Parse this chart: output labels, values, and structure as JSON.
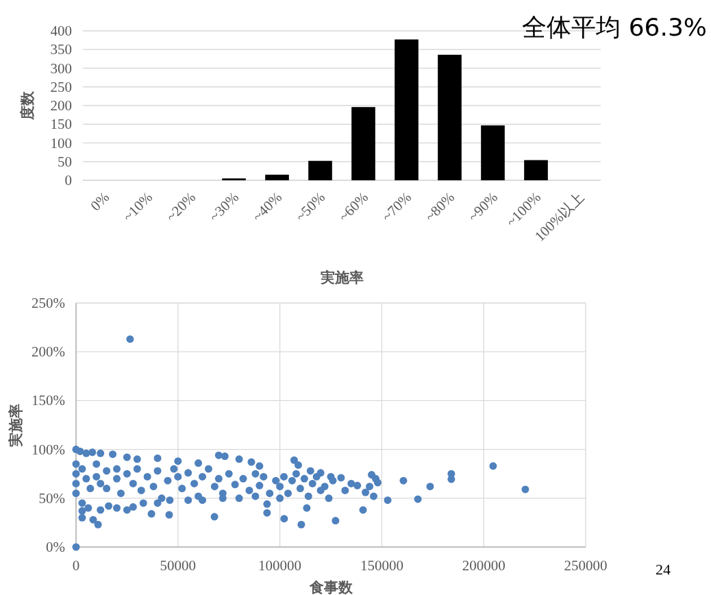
{
  "chart_data": [
    {
      "type": "bar",
      "ylabel": "度数",
      "xlabel": "実施率",
      "annotations": [
        "全体平均 66.3%"
      ],
      "categories": [
        "0%",
        "~10%",
        "~20%",
        "~30%",
        "~40%",
        "~50%",
        "~60%",
        "~70%",
        "~80%",
        "~90%",
        "~100%",
        "100%以上"
      ],
      "values": [
        0,
        0,
        0,
        5,
        15,
        52,
        196,
        377,
        336,
        147,
        54,
        0
      ],
      "color": "#000000",
      "ylim": [
        0,
        400
      ],
      "yticks": [
        0,
        50,
        100,
        150,
        200,
        250,
        300,
        350,
        400
      ],
      "grid": "y"
    },
    {
      "type": "scatter",
      "ylabel": "実施率",
      "xlabel": "食事数",
      "annotations": [
        "24"
      ],
      "color": "#4f81bd",
      "marker": "circle",
      "grid": true,
      "xlim": [
        0,
        250000
      ],
      "xticks": [
        0,
        50000,
        100000,
        150000,
        200000,
        250000
      ],
      "ylim": [
        0,
        250
      ],
      "yticks": [
        {
          "value": 0,
          "label": "0%"
        },
        {
          "value": 50,
          "label": "50%"
        },
        {
          "value": 100,
          "label": "100%"
        },
        {
          "value": 150,
          "label": "150%"
        },
        {
          "value": 200,
          "label": "200%"
        },
        {
          "value": 250,
          "label": "250%"
        }
      ],
      "x": [
        26500,
        0,
        220400,
        204600,
        184100,
        184100,
        173700,
        167700,
        160600,
        152900,
        127300,
        110500,
        102100,
        140800,
        113200,
        93700,
        93700,
        67900,
        45700,
        37000,
        10800,
        8400,
        3000,
        3000,
        0,
        0,
        2000,
        5000,
        8000,
        12000,
        18000,
        25000,
        30000,
        40000,
        50000,
        60000,
        70000,
        73000,
        80000,
        86000,
        90000,
        107000,
        109000,
        115000,
        120000,
        125000,
        130000,
        145000,
        147000,
        0,
        0,
        0,
        3000,
        5000,
        7000,
        10000,
        10000,
        12000,
        15000,
        15000,
        20000,
        20000,
        22000,
        25000,
        28000,
        30000,
        32000,
        35000,
        38000,
        40000,
        42000,
        45000,
        48000,
        50000,
        52000,
        55000,
        58000,
        60000,
        62000,
        65000,
        68000,
        70000,
        72000,
        75000,
        78000,
        80000,
        82000,
        85000,
        88000,
        90000,
        92000,
        95000,
        98000,
        100000,
        102000,
        104000,
        106000,
        108000,
        110000,
        112000,
        114000,
        116000,
        118000,
        120000,
        122000,
        124000,
        126000,
        132000,
        135000,
        138000,
        142000,
        144000,
        146000,
        148000,
        3000,
        6000,
        12000,
        16000,
        20000,
        25000,
        28000,
        33000,
        40000,
        46000,
        55000,
        62000,
        72000,
        88000,
        100000
      ],
      "values": [
        213,
        0,
        59,
        83,
        75,
        69.5,
        62,
        49,
        68,
        48,
        27,
        23,
        29,
        38,
        40,
        35,
        44,
        31,
        33,
        34,
        23,
        28,
        30,
        37,
        55,
        100,
        98,
        96,
        97,
        96,
        95,
        92,
        90,
        91,
        88,
        86,
        94,
        93,
        90,
        87,
        83,
        89,
        84,
        78,
        76,
        72,
        71,
        74,
        70,
        85,
        75,
        65,
        80,
        70,
        60,
        85,
        72,
        65,
        78,
        60,
        80,
        70,
        55,
        75,
        65,
        80,
        58,
        72,
        62,
        78,
        50,
        68,
        80,
        72,
        60,
        76,
        65,
        52,
        72,
        80,
        62,
        70,
        55,
        75,
        64,
        50,
        70,
        58,
        75,
        63,
        72,
        55,
        68,
        62,
        72,
        55,
        68,
        75,
        60,
        70,
        52,
        65,
        72,
        58,
        62,
        50,
        68,
        58,
        65,
        63,
        56,
        62,
        52,
        66,
        45,
        40,
        38,
        42,
        40,
        38,
        41,
        45,
        45,
        48,
        48,
        48,
        50,
        52,
        50
      ]
    }
  ]
}
